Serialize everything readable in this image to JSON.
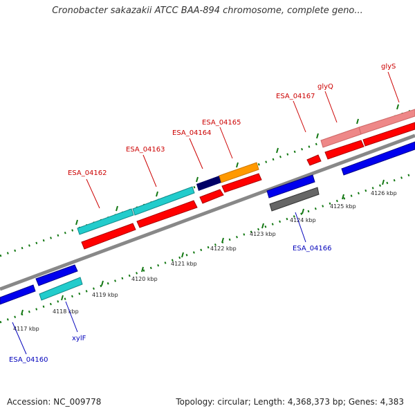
{
  "title": "Cronobacter sakazakii ATCC BAA-894 chromosome, complete geno...",
  "accession": "Accession: NC_009778",
  "topology": "Topology: circular; Length: 4,368,373 bp; Genes: 4,383",
  "kbp_labels": [
    "4117 kbp",
    "4118 kbp",
    "4119 kbp",
    "4120 kbp",
    "4121 kbp",
    "4122 kbp",
    "4123 kbp",
    "4124 kbp",
    "4125 kbp",
    "4126 kbp"
  ],
  "gene_labels": {
    "ESA_04162": "ESA_04162",
    "ESA_04163": "ESA_04163",
    "ESA_04164": "ESA_04164",
    "ESA_04165": "ESA_04165",
    "ESA_04167": "ESA_04167",
    "glyQ": "glyQ",
    "glyS": "glyS",
    "ESA_04166": "ESA_04166",
    "xylF": "xylF",
    "ESA_04160": "ESA_04160"
  },
  "colors": {
    "forward_label": "#cc0000",
    "reverse_label": "#0000bb",
    "cds": "#ff0000",
    "cyan_gene": "#22cccc",
    "blue_gene": "#0000ee",
    "gray_gene": "#666666",
    "orange_gene": "#ff9900",
    "navy_gene": "#000066",
    "pink_gene": "#ee8888",
    "ticks": "#117711"
  }
}
